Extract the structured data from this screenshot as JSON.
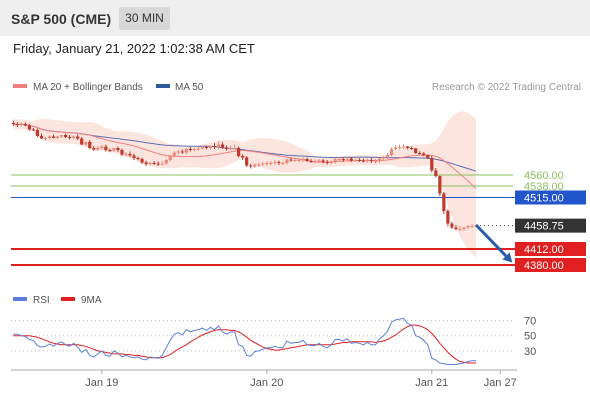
{
  "header": {
    "instrument": "S&P 500 (CME)",
    "timeframe": "30 MIN",
    "datetime": "Friday, January 21, 2022 1:02:38 AM CET"
  },
  "legend": {
    "items": [
      {
        "label": "MA 20 + Bollinger Bands",
        "color": "#f08080"
      },
      {
        "label": "MA 50",
        "color": "#2c5c9c"
      }
    ],
    "copyright": "Research © 2022 Trading Central"
  },
  "colors": {
    "bullish": "#e98a7c",
    "bearish": "#c0392b",
    "band_fill": "#fde5df",
    "ma20": "#f08080",
    "ma50": "#5b6fb3",
    "resistance": "#8cc060",
    "pivot": "#2255cc",
    "support": "#e02020",
    "last_price": "#333333",
    "rsi": "#5b7fd9",
    "rsi_ma": "#e02020",
    "arrow": "#2a5ca8"
  },
  "chart_data": [
    {
      "type": "candlestick",
      "series": [
        {
          "name": "S&P 500 (CME)",
          "x": [
            1,
            2,
            3,
            4,
            5,
            6,
            7,
            8,
            9,
            10,
            11,
            12,
            13,
            14,
            15,
            16,
            17,
            18,
            19,
            20,
            21,
            22,
            23,
            24,
            25,
            26,
            27,
            28,
            29,
            30,
            31,
            32,
            33,
            34,
            35,
            36,
            37,
            38,
            39,
            40,
            41,
            42,
            43,
            44,
            45,
            46,
            47,
            48,
            49,
            50,
            51,
            52,
            53,
            54,
            55,
            56,
            57,
            58,
            59,
            60,
            61,
            62,
            63,
            64,
            65,
            66,
            67,
            68,
            69,
            70,
            71,
            72,
            73,
            74,
            75,
            76,
            77,
            78,
            79,
            80,
            81,
            82,
            83,
            84,
            85,
            86,
            87,
            88,
            89,
            90,
            91,
            92,
            93,
            94,
            95,
            96,
            97,
            98,
            99,
            100,
            101,
            102,
            103,
            104,
            105,
            106,
            107,
            108,
            109,
            110,
            111,
            112,
            113,
            114,
            115,
            116
          ],
          "open": [
            4664,
            4662,
            4660,
            4662,
            4659,
            4651,
            4650,
            4638,
            4633,
            4634,
            4637,
            4634,
            4637,
            4640,
            4636,
            4634,
            4637,
            4633,
            4621,
            4626,
            4614,
            4611,
            4614,
            4617,
            4610,
            4609,
            4614,
            4610,
            4601,
            4602,
            4599,
            4594,
            4592,
            4585,
            4582,
            4584,
            4583,
            4581,
            4583,
            4590,
            4598,
            4605,
            4607,
            4605,
            4612,
            4610,
            4612,
            4613,
            4616,
            4614,
            4618,
            4616,
            4621,
            4615,
            4612,
            4614,
            4614,
            4598,
            4595,
            4579,
            4577,
            4581,
            4581,
            4583,
            4584,
            4584,
            4586,
            4584,
            4584,
            4591,
            4589,
            4590,
            4590,
            4592,
            4588,
            4587,
            4587,
            4589,
            4586,
            4584,
            4587,
            4592,
            4592,
            4591,
            4593,
            4589,
            4590,
            4589,
            4588,
            4590,
            4588,
            4588,
            4593,
            4596,
            4600,
            4612,
            4615,
            4616,
            4617,
            4614,
            4613,
            4604,
            4603,
            4600,
            4594,
            4569,
            4558,
            4523,
            4488,
            4463,
            4455,
            4452,
            4452,
            4455,
            4458,
            4458
          ],
          "high": [
            4669,
            4666,
            4665,
            4665,
            4662,
            4654,
            4653,
            4643,
            4636,
            4639,
            4641,
            4638,
            4640,
            4643,
            4640,
            4639,
            4641,
            4636,
            4627,
            4630,
            4618,
            4618,
            4620,
            4621,
            4613,
            4614,
            4617,
            4613,
            4606,
            4607,
            4603,
            4597,
            4595,
            4589,
            4586,
            4588,
            4587,
            4588,
            4592,
            4600,
            4608,
            4610,
            4611,
            4614,
            4616,
            4615,
            4617,
            4619,
            4619,
            4619,
            4624,
            4627,
            4626,
            4619,
            4619,
            4621,
            4617,
            4602,
            4598,
            4583,
            4583,
            4585,
            4585,
            4587,
            4588,
            4590,
            4589,
            4587,
            4593,
            4595,
            4593,
            4595,
            4595,
            4595,
            4592,
            4591,
            4592,
            4592,
            4590,
            4589,
            4594,
            4596,
            4596,
            4596,
            4596,
            4593,
            4594,
            4593,
            4593,
            4594,
            4592,
            4595,
            4598,
            4604,
            4615,
            4620,
            4621,
            4622,
            4618,
            4617,
            4614,
            4608,
            4606,
            4601,
            4599,
            4574,
            4559,
            4526,
            4492,
            4467,
            4460,
            4458,
            4456,
            4460,
            4462,
            4461
          ],
          "low": [
            4658,
            4656,
            4657,
            4657,
            4649,
            4648,
            4636,
            4632,
            4629,
            4631,
            4633,
            4632,
            4634,
            4634,
            4631,
            4632,
            4630,
            4620,
            4617,
            4612,
            4608,
            4609,
            4611,
            4607,
            4606,
            4606,
            4606,
            4598,
            4597,
            4596,
            4590,
            4589,
            4582,
            4578,
            4579,
            4580,
            4578,
            4579,
            4580,
            4587,
            4595,
            4601,
            4602,
            4601,
            4607,
            4607,
            4608,
            4611,
            4611,
            4611,
            4612,
            4612,
            4612,
            4609,
            4610,
            4611,
            4595,
            4590,
            4576,
            4573,
            4574,
            4576,
            4578,
            4578,
            4579,
            4580,
            4580,
            4580,
            4581,
            4586,
            4586,
            4585,
            4586,
            4586,
            4584,
            4584,
            4584,
            4583,
            4581,
            4581,
            4583,
            4588,
            4586,
            4587,
            4586,
            4586,
            4586,
            4585,
            4584,
            4584,
            4583,
            4584,
            4590,
            4592,
            4597,
            4610,
            4611,
            4612,
            4611,
            4610,
            4602,
            4600,
            4597,
            4592,
            4565,
            4555,
            4518,
            4482,
            4457,
            4452,
            4449,
            4448,
            4448,
            4452,
            4454,
            4456
          ],
          "close": [
            4662,
            4660,
            4662,
            4659,
            4651,
            4650,
            4638,
            4633,
            4634,
            4637,
            4634,
            4637,
            4640,
            4636,
            4634,
            4637,
            4633,
            4621,
            4626,
            4614,
            4611,
            4614,
            4617,
            4610,
            4609,
            4614,
            4610,
            4601,
            4602,
            4599,
            4594,
            4592,
            4585,
            4582,
            4584,
            4583,
            4581,
            4583,
            4590,
            4598,
            4605,
            4607,
            4605,
            4612,
            4610,
            4612,
            4613,
            4616,
            4614,
            4618,
            4616,
            4621,
            4615,
            4612,
            4614,
            4614,
            4598,
            4595,
            4579,
            4577,
            4581,
            4581,
            4583,
            4584,
            4584,
            4586,
            4584,
            4584,
            4591,
            4589,
            4590,
            4590,
            4592,
            4588,
            4587,
            4587,
            4589,
            4586,
            4584,
            4587,
            4592,
            4592,
            4591,
            4593,
            4589,
            4590,
            4589,
            4588,
            4590,
            4588,
            4588,
            4593,
            4596,
            4600,
            4612,
            4615,
            4616,
            4617,
            4614,
            4613,
            4604,
            4603,
            4600,
            4594,
            4569,
            4558,
            4523,
            4488,
            4463,
            4455,
            4452,
            4452,
            4455,
            4458,
            4458,
            4458.75
          ]
        }
      ],
      "x_ticks": [
        {
          "x": 23,
          "label": "Jan 19"
        },
        {
          "x": 64,
          "label": "Jan 20"
        },
        {
          "x": 105,
          "label": "Jan 21"
        },
        {
          "x": 122,
          "label": "Jan 27"
        }
      ],
      "price_levels": [
        {
          "label": "4560.00",
          "value": 4560,
          "kind": "resistance"
        },
        {
          "label": "4538.00",
          "value": 4538,
          "kind": "resistance"
        },
        {
          "label": "4515.00",
          "value": 4515,
          "kind": "pivot"
        },
        {
          "label": "4458.75",
          "value": 4458.75,
          "kind": "last_price"
        },
        {
          "label": "4412.00",
          "value": 4412,
          "kind": "support"
        },
        {
          "label": "4380.00",
          "value": 4380,
          "kind": "support"
        }
      ],
      "forecast_arrow": {
        "from": [
          116,
          4460
        ],
        "to": [
          125,
          4385
        ]
      },
      "ylim": [
        4340,
        4700
      ]
    },
    {
      "type": "line",
      "title": "",
      "legend": [
        "RSI",
        "9MA"
      ],
      "series": [
        {
          "name": "RSI",
          "values": [
            52,
            52,
            50,
            49,
            45,
            44,
            37,
            35,
            36,
            39,
            36,
            40,
            42,
            38,
            36,
            40,
            35,
            28,
            32,
            24,
            22,
            26,
            30,
            24,
            23,
            30,
            27,
            22,
            24,
            22,
            21,
            22,
            19,
            18,
            22,
            21,
            20,
            24,
            34,
            44,
            52,
            54,
            51,
            58,
            55,
            57,
            58,
            60,
            57,
            61,
            58,
            63,
            55,
            52,
            55,
            55,
            38,
            36,
            24,
            23,
            29,
            30,
            32,
            34,
            34,
            36,
            34,
            34,
            43,
            40,
            41,
            41,
            44,
            38,
            37,
            37,
            40,
            36,
            34,
            38,
            45,
            45,
            43,
            46,
            40,
            41,
            40,
            38,
            41,
            38,
            38,
            46,
            50,
            56,
            68,
            71,
            72,
            73,
            66,
            64,
            50,
            48,
            44,
            38,
            20,
            18,
            14,
            13,
            12,
            12,
            12,
            13,
            14,
            16,
            17,
            17
          ]
        },
        {
          "name": "9MA",
          "values": [
            50,
            50,
            50,
            50,
            50,
            49,
            48,
            46,
            44,
            42,
            40,
            39,
            38,
            38,
            38,
            38,
            38,
            37,
            36,
            34,
            32,
            30,
            29,
            28,
            27,
            26,
            26,
            26,
            25,
            25,
            24,
            24,
            23,
            22,
            21,
            21,
            21,
            21,
            23,
            25,
            29,
            32,
            35,
            38,
            42,
            45,
            48,
            51,
            53,
            55,
            57,
            58,
            58,
            58,
            57,
            57,
            55,
            52,
            48,
            44,
            41,
            38,
            35,
            33,
            32,
            31,
            31,
            32,
            33,
            34,
            35,
            36,
            37,
            38,
            38,
            38,
            38,
            38,
            38,
            38,
            39,
            40,
            41,
            41,
            42,
            42,
            42,
            42,
            42,
            42,
            41,
            42,
            43,
            45,
            48,
            51,
            55,
            59,
            62,
            64,
            64,
            63,
            61,
            58,
            53,
            47,
            40,
            34,
            28,
            23,
            19,
            16,
            15,
            14,
            14,
            14
          ]
        }
      ],
      "y_ticks": [
        70,
        50,
        30
      ],
      "ylim": [
        10,
        80
      ]
    }
  ]
}
